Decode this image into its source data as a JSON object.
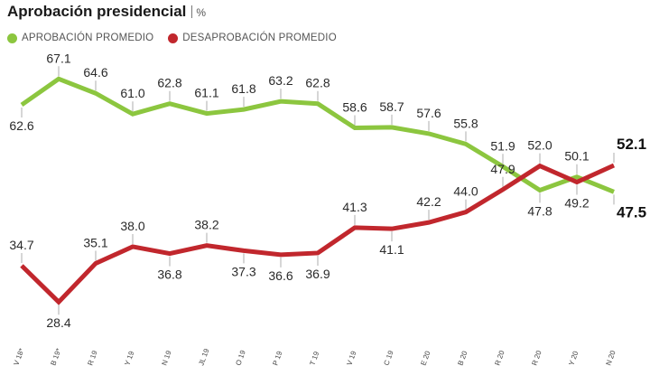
{
  "header": {
    "title": "Aprobación presidencial",
    "unit": "%"
  },
  "legend": [
    {
      "name": "APROBACIÓN PROMEDIO",
      "color": "#8cc63f"
    },
    {
      "name": "DESAPROBACIÓN PROMEDIO",
      "color": "#c1272d"
    }
  ],
  "chart_data": {
    "type": "line",
    "title": "Aprobación presidencial",
    "x": [
      "V 18*",
      "B 19*",
      "R 19",
      "Y 19",
      "N 19",
      "JL 19",
      "O 19",
      "P 19",
      "T 19",
      "V 19",
      "C 19",
      "E 20",
      "B 20",
      "R 20",
      "R 20",
      "Y 20",
      "N 20"
    ],
    "series": [
      {
        "name": "APROBACIÓN PROMEDIO",
        "color": "#8cc63f",
        "values": [
          62.6,
          67.1,
          64.6,
          61.0,
          62.8,
          61.1,
          61.8,
          63.2,
          62.8,
          58.6,
          58.7,
          57.6,
          55.8,
          51.9,
          47.8,
          50.1,
          47.5
        ]
      },
      {
        "name": "DESAPROBACIÓN PROMEDIO",
        "color": "#c1272d",
        "values": [
          34.7,
          28.4,
          35.1,
          38.0,
          36.8,
          38.2,
          37.3,
          36.6,
          36.9,
          41.3,
          41.1,
          42.2,
          44.0,
          47.9,
          52.0,
          49.2,
          52.1
        ]
      }
    ],
    "labels": {
      "approval": [
        "62.6",
        "67.1",
        "64.6",
        "61.0",
        "62.8",
        "61.1",
        "61.8",
        "63.2",
        "62.8",
        "58.6",
        "58.7",
        "57.6",
        "55.8",
        "51.9",
        "47.8",
        "50.1",
        "47.5"
      ],
      "disapproval": [
        "34.7",
        "28.4",
        "35.1",
        "38.0",
        "36.8",
        "38.2",
        "37.3",
        "36.6",
        "36.9",
        "41.3",
        "41.1",
        "42.2",
        "44.0",
        "47.9",
        "52.0",
        "49.2",
        "52.1"
      ]
    }
  }
}
